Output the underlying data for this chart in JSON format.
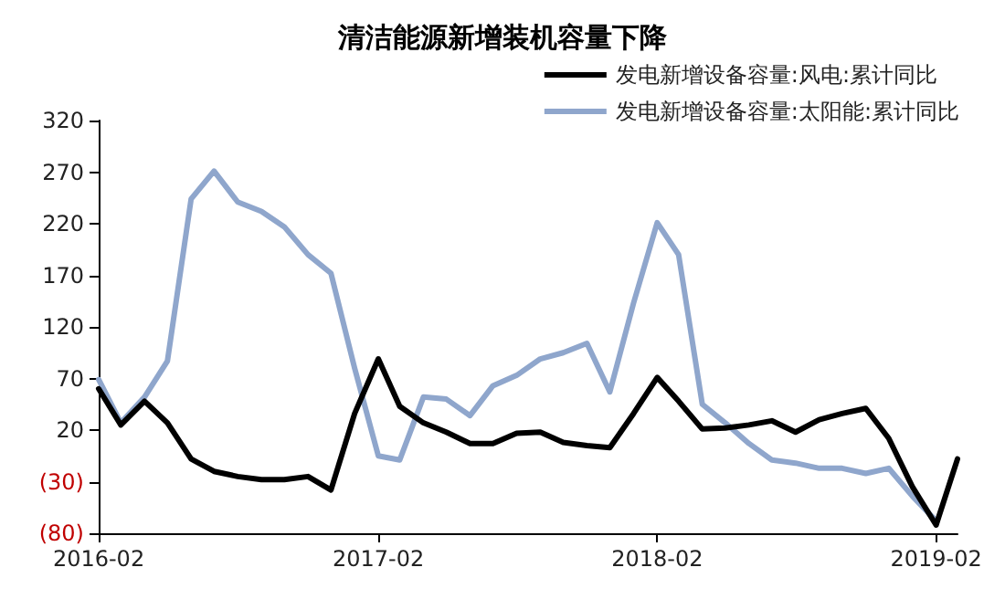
{
  "chart_data": {
    "type": "line",
    "title": "清洁能源新增装机容量下降",
    "x": [
      "2016-02",
      "2016-03",
      "2016-04",
      "2016-05",
      "2016-06",
      "2016-07",
      "2016-08",
      "2016-09",
      "2016-10",
      "2016-11",
      "2016-12",
      "2017-01",
      "2017-02",
      "2017-03",
      "2017-04",
      "2017-05",
      "2017-06",
      "2017-07",
      "2017-08",
      "2017-09",
      "2017-10",
      "2017-11",
      "2017-12",
      "2018-01",
      "2018-02",
      "2018-03",
      "2018-04",
      "2018-05",
      "2018-06",
      "2018-07",
      "2018-08",
      "2018-09",
      "2018-10",
      "2018-11",
      "2018-12",
      "2019-01",
      "2019-02",
      "2019-03"
    ],
    "series": [
      {
        "name": "发电新增设备容量:风电:累计同比",
        "color": "#000000",
        "values": [
          60,
          25,
          48,
          27,
          -8,
          -20,
          -25,
          -28,
          -28,
          -25,
          -38,
          36,
          89,
          43,
          27,
          18,
          7,
          7,
          17,
          18,
          8,
          5,
          3,
          36,
          71,
          48,
          21,
          22,
          25,
          29,
          18,
          30,
          36,
          41,
          12,
          -35,
          -72,
          -8
        ]
      },
      {
        "name": "发电新增设备容量:太阳能:累计同比",
        "color": "#8fa6cc",
        "values": [
          69,
          27,
          52,
          87,
          244,
          271,
          241,
          232,
          217,
          190,
          172,
          80,
          -5,
          -9,
          52,
          50,
          34,
          63,
          73,
          89,
          95,
          104,
          57,
          143,
          221,
          190,
          45,
          27,
          7,
          -9,
          -12,
          -17,
          -17,
          -22,
          -17,
          -44,
          -68,
          null
        ]
      }
    ],
    "xlim": [
      "2016-02",
      "2019-03"
    ],
    "xticks": [
      "2016-02",
      "2017-02",
      "2018-02",
      "2019-02"
    ],
    "ylim": [
      -80,
      320
    ],
    "yticks": [
      {
        "value": -80,
        "label": "(80)"
      },
      {
        "value": -30,
        "label": "(30)"
      },
      20,
      70,
      120,
      170,
      220,
      270,
      320
    ],
    "grid": false,
    "legend": "top right",
    "marker": "none",
    "line_style": "solid"
  }
}
